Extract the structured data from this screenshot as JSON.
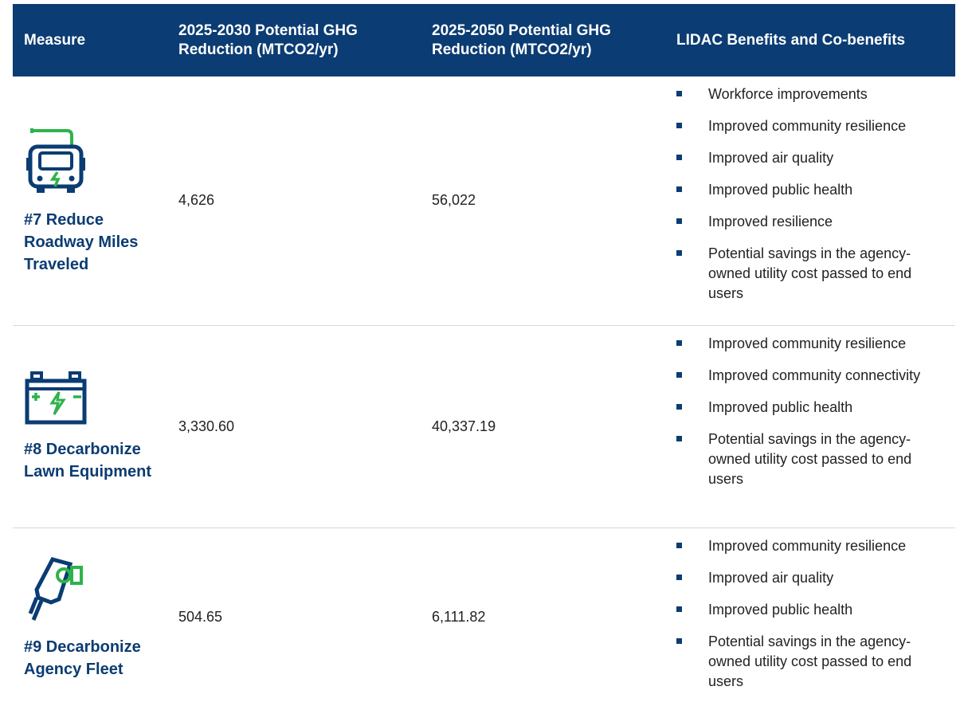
{
  "table": {
    "header": [
      "Measure",
      "2025-2030 Potential GHG Reduction (MTCO2/yr)",
      "2025-2050 Potential GHG Reduction (MTCO2/yr)",
      "LIDAC Benefits and Co-benefits"
    ],
    "rows": [
      {
        "measure": "#7 Reduce Roadway Miles Traveled",
        "reduction_2030": "4,626",
        "reduction_2050": "56,022",
        "benefits": [
          "Workforce improvements",
          "Improved community resilience",
          "Improved air quality",
          "Improved public health",
          "Improved resilience",
          "Potential savings in the agency-owned utility cost passed to end users"
        ]
      },
      {
        "measure": "#8 Decarbonize Lawn Equipment",
        "reduction_2030": "3,330.60",
        "reduction_2050": "40,337.19",
        "benefits": [
          "Improved community resilience",
          "Improved community connectivity",
          "Improved public health",
          "Potential savings in the agency-owned utility cost passed to end users"
        ]
      },
      {
        "measure": "#9 Decarbonize Agency Fleet",
        "reduction_2030": "504.65",
        "reduction_2050": "6,111.82",
        "benefits": [
          "Improved community resilience",
          "Improved air quality",
          "Improved public health",
          "Potential savings in the agency-owned utility cost passed to end users"
        ]
      }
    ]
  }
}
